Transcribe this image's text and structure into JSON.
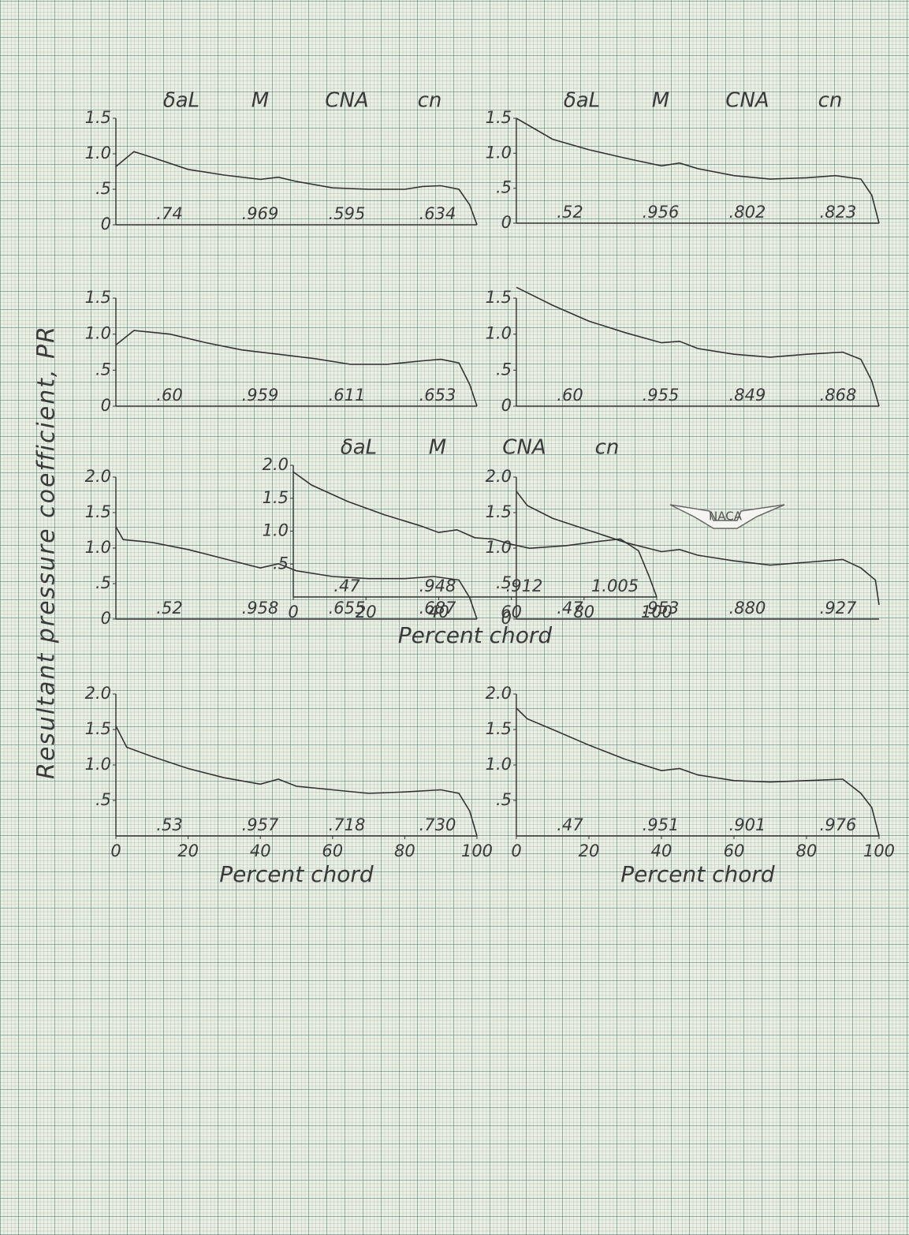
{
  "y_label": "Resultant pressure coefficient, PR",
  "logo": "NACA",
  "chart_data": [
    {
      "type": "line",
      "parameter_names": [
        "δaL",
        "M",
        "CNA",
        "cn"
      ],
      "parameter_values": [
        {
          "value": 0.74,
          "label": ".74"
        },
        {
          "value": 0.969,
          "label": ".969"
        },
        {
          "value": 0.595,
          "label": ".595"
        },
        {
          "value": 0.634,
          "label": ".634"
        }
      ],
      "x": [
        0,
        5,
        10,
        20,
        30,
        40,
        45,
        50,
        60,
        70,
        80,
        85,
        90,
        95,
        98,
        100
      ],
      "values": [
        0.82,
        1.03,
        0.95,
        0.78,
        0.7,
        0.64,
        0.67,
        0.61,
        0.52,
        0.5,
        0.5,
        0.54,
        0.55,
        0.5,
        0.28,
        0
      ],
      "xlim": [
        0,
        100
      ],
      "ylim": [
        0,
        1.5
      ],
      "yticks": [
        0,
        {
          "value": 0.5,
          "label": ".5"
        },
        {
          "value": 1,
          "label": "1.0"
        },
        1.5
      ],
      "color": "#333333"
    },
    {
      "type": "line",
      "parameter_names": [
        "δaL",
        "M",
        "CNA",
        "cn"
      ],
      "parameter_values": [
        {
          "value": 0.52,
          "label": ".52"
        },
        {
          "value": 0.956,
          "label": ".956"
        },
        {
          "value": 0.802,
          "label": ".802"
        },
        {
          "value": 0.823,
          "label": ".823"
        }
      ],
      "x": [
        0,
        10,
        20,
        30,
        40,
        45,
        50,
        60,
        70,
        80,
        88,
        95,
        98,
        100
      ],
      "values": [
        1.5,
        1.2,
        1.05,
        0.93,
        0.82,
        0.86,
        0.78,
        0.68,
        0.63,
        0.65,
        0.68,
        0.63,
        0.4,
        0
      ],
      "xlim": [
        0,
        100
      ],
      "ylim": [
        0,
        1.5
      ],
      "yticks": [
        0,
        {
          "value": 0.5,
          "label": ".5"
        },
        {
          "value": 1,
          "label": "1.0"
        },
        1.5
      ],
      "color": "#333333"
    },
    {
      "type": "line",
      "parameter_values": [
        {
          "value": 0.6,
          "label": ".60"
        },
        {
          "value": 0.959,
          "label": ".959"
        },
        {
          "value": 0.611,
          "label": ".611"
        },
        {
          "value": 0.653,
          "label": ".653"
        }
      ],
      "x": [
        0,
        5,
        15,
        25,
        35,
        45,
        55,
        65,
        75,
        85,
        90,
        95,
        98,
        100
      ],
      "values": [
        0.85,
        1.05,
        1.0,
        0.88,
        0.78,
        0.72,
        0.66,
        0.58,
        0.58,
        0.63,
        0.65,
        0.6,
        0.3,
        0
      ],
      "xlim": [
        0,
        100
      ],
      "ylim": [
        0,
        1.5
      ],
      "yticks": [
        0,
        {
          "value": 0.5,
          "label": ".5"
        },
        {
          "value": 1,
          "label": "1.0"
        },
        1.5
      ],
      "color": "#333333"
    },
    {
      "type": "line",
      "parameter_values": [
        {
          "value": 0.6,
          "label": ".60"
        },
        {
          "value": 0.955,
          "label": ".955"
        },
        {
          "value": 0.849,
          "label": ".849"
        },
        {
          "value": 0.868,
          "label": ".868"
        }
      ],
      "x": [
        0,
        10,
        20,
        30,
        40,
        45,
        50,
        60,
        70,
        80,
        90,
        95,
        98,
        100
      ],
      "values": [
        1.65,
        1.4,
        1.18,
        1.02,
        0.88,
        0.9,
        0.8,
        0.72,
        0.68,
        0.72,
        0.75,
        0.65,
        0.35,
        0
      ],
      "xlim": [
        0,
        100
      ],
      "ylim": [
        0,
        1.5
      ],
      "yticks": [
        0,
        {
          "value": 0.5,
          "label": ".5"
        },
        {
          "value": 1,
          "label": "1.0"
        },
        1.5
      ],
      "color": "#333333"
    },
    {
      "type": "line",
      "parameter_values": [
        {
          "value": 0.52,
          "label": ".52"
        },
        {
          "value": 0.958,
          "label": ".958"
        },
        {
          "value": 0.655,
          "label": ".655"
        },
        {
          "value": 0.687,
          "label": ".687"
        }
      ],
      "x": [
        0,
        2,
        10,
        20,
        30,
        40,
        45,
        50,
        60,
        70,
        80,
        88,
        95,
        98,
        100
      ],
      "values": [
        1.3,
        1.12,
        1.08,
        0.98,
        0.85,
        0.72,
        0.78,
        0.68,
        0.6,
        0.57,
        0.57,
        0.6,
        0.55,
        0.3,
        0
      ],
      "xlim": [
        0,
        100
      ],
      "ylim": [
        0,
        2
      ],
      "yticks": [
        0,
        {
          "value": 0.5,
          "label": ".5"
        },
        {
          "value": 1,
          "label": "1.0"
        },
        1.5,
        {
          "value": 2,
          "label": "2.0"
        }
      ],
      "color": "#333333"
    },
    {
      "type": "line",
      "parameter_values": [
        {
          "value": 0.47,
          "label": ".47"
        },
        {
          "value": 0.953,
          "label": ".953"
        },
        {
          "value": 0.88,
          "label": ".880"
        },
        {
          "value": 0.927,
          "label": ".927"
        }
      ],
      "x": [
        0,
        3,
        10,
        20,
        30,
        40,
        45,
        50,
        60,
        70,
        80,
        90,
        95,
        99,
        100
      ],
      "values": [
        1.8,
        1.6,
        1.42,
        1.25,
        1.08,
        0.95,
        0.98,
        0.9,
        0.82,
        0.76,
        0.8,
        0.84,
        0.72,
        0.55,
        0.2
      ],
      "xlim": [
        0,
        100
      ],
      "ylim": [
        0,
        2
      ],
      "yticks": [
        0,
        {
          "value": 0.5,
          "label": ".5"
        },
        {
          "value": 1,
          "label": "1.0"
        },
        1.5,
        {
          "value": 2,
          "label": "2.0"
        }
      ],
      "color": "#333333"
    },
    {
      "type": "line",
      "x_label": "Percent chord",
      "parameter_values": [
        {
          "value": 0.53,
          "label": ".53"
        },
        {
          "value": 0.957,
          "label": ".957"
        },
        {
          "value": 0.718,
          "label": ".718"
        },
        {
          "value": 0.73,
          "label": ".730"
        }
      ],
      "x": [
        0,
        3,
        10,
        20,
        30,
        40,
        45,
        50,
        60,
        70,
        80,
        90,
        95,
        98,
        100
      ],
      "values": [
        1.55,
        1.25,
        1.12,
        0.95,
        0.82,
        0.73,
        0.8,
        0.7,
        0.65,
        0.6,
        0.62,
        0.65,
        0.6,
        0.35,
        0
      ],
      "xlim": [
        0,
        100
      ],
      "ylim": [
        0,
        2
      ],
      "xticks": [
        0,
        20,
        40,
        60,
        80,
        100
      ],
      "yticks": [
        {
          "value": 0.5,
          "label": ".5"
        },
        {
          "value": 1,
          "label": "1.0"
        },
        1.5,
        {
          "value": 2,
          "label": "2.0"
        }
      ],
      "color": "#333333"
    },
    {
      "type": "line",
      "x_label": "Percent chord",
      "parameter_values": [
        {
          "value": 0.47,
          "label": ".47"
        },
        {
          "value": 0.951,
          "label": ".951"
        },
        {
          "value": 0.901,
          "label": ".901"
        },
        {
          "value": 0.976,
          "label": ".976"
        }
      ],
      "x": [
        0,
        3,
        10,
        20,
        30,
        40,
        45,
        50,
        60,
        70,
        80,
        90,
        95,
        98,
        100
      ],
      "values": [
        1.8,
        1.65,
        1.5,
        1.28,
        1.08,
        0.92,
        0.95,
        0.86,
        0.78,
        0.76,
        0.78,
        0.8,
        0.6,
        0.4,
        0
      ],
      "xlim": [
        0,
        100
      ],
      "ylim": [
        0,
        2
      ],
      "xticks": [
        0,
        20,
        40,
        60,
        80,
        100
      ],
      "yticks": [
        {
          "value": 0.5,
          "label": ".5"
        },
        {
          "value": 1,
          "label": "1.0"
        },
        1.5,
        {
          "value": 2,
          "label": "2.0"
        }
      ],
      "color": "#333333"
    },
    {
      "type": "line",
      "x_label": "Percent chord",
      "parameter_names": [
        "δaL",
        "M",
        "CNA",
        "cn"
      ],
      "parameter_values": [
        {
          "value": 0.47,
          "label": ".47"
        },
        {
          "value": 0.948,
          "label": ".948"
        },
        {
          "value": 0.912,
          "label": ".912"
        },
        1.005
      ],
      "x": [
        0,
        5,
        15,
        25,
        35,
        40,
        45,
        50,
        55,
        60,
        65,
        75,
        85,
        90,
        95,
        98,
        100
      ],
      "values": [
        1.9,
        1.7,
        1.45,
        1.25,
        1.08,
        0.98,
        1.02,
        0.9,
        0.88,
        0.8,
        0.74,
        0.78,
        0.85,
        0.88,
        0.7,
        0.3,
        0
      ],
      "xlim": [
        0,
        100
      ],
      "ylim": [
        0,
        2
      ],
      "xticks": [
        0,
        20,
        40,
        60,
        80,
        100
      ],
      "yticks": [
        {
          "value": 0.5,
          "label": ".5"
        },
        {
          "value": 1,
          "label": "1.0"
        },
        1.5,
        {
          "value": 2,
          "label": "2.0"
        }
      ],
      "color": "#333333"
    }
  ]
}
